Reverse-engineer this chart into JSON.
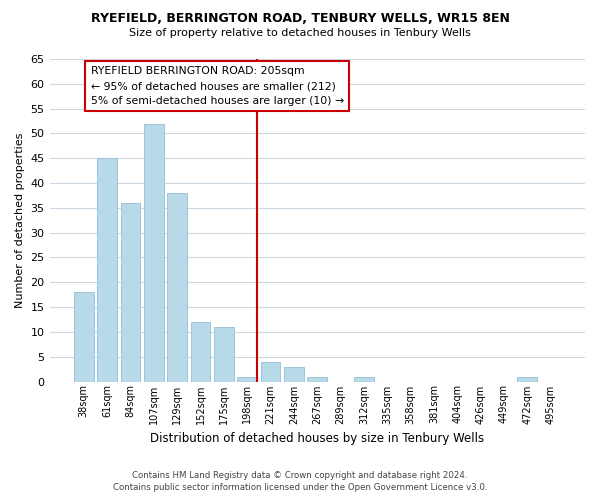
{
  "title": "RYEFIELD, BERRINGTON ROAD, TENBURY WELLS, WR15 8EN",
  "subtitle": "Size of property relative to detached houses in Tenbury Wells",
  "xlabel": "Distribution of detached houses by size in Tenbury Wells",
  "ylabel": "Number of detached properties",
  "bar_labels": [
    "38sqm",
    "61sqm",
    "84sqm",
    "107sqm",
    "129sqm",
    "152sqm",
    "175sqm",
    "198sqm",
    "221sqm",
    "244sqm",
    "267sqm",
    "289sqm",
    "312sqm",
    "335sqm",
    "358sqm",
    "381sqm",
    "404sqm",
    "426sqm",
    "449sqm",
    "472sqm",
    "495sqm"
  ],
  "bar_values": [
    18,
    45,
    36,
    52,
    38,
    12,
    11,
    1,
    4,
    3,
    1,
    0,
    1,
    0,
    0,
    0,
    0,
    0,
    0,
    1,
    0
  ],
  "bar_color": "#b8d9e8",
  "bar_edge_color": "#9ec4d8",
  "vline_x_index": 7,
  "vline_color": "#cc0000",
  "annotation_title": "RYEFIELD BERRINGTON ROAD: 205sqm",
  "annotation_line1": "← 95% of detached houses are smaller (212)",
  "annotation_line2": "5% of semi-detached houses are larger (10) →",
  "annotation_box_color": "#ffffff",
  "annotation_box_edge": "#cc0000",
  "ylim": [
    0,
    65
  ],
  "yticks": [
    0,
    5,
    10,
    15,
    20,
    25,
    30,
    35,
    40,
    45,
    50,
    55,
    60,
    65
  ],
  "footer_line1": "Contains HM Land Registry data © Crown copyright and database right 2024.",
  "footer_line2": "Contains public sector information licensed under the Open Government Licence v3.0.",
  "bg_color": "#ffffff",
  "grid_color": "#ccd9e5"
}
